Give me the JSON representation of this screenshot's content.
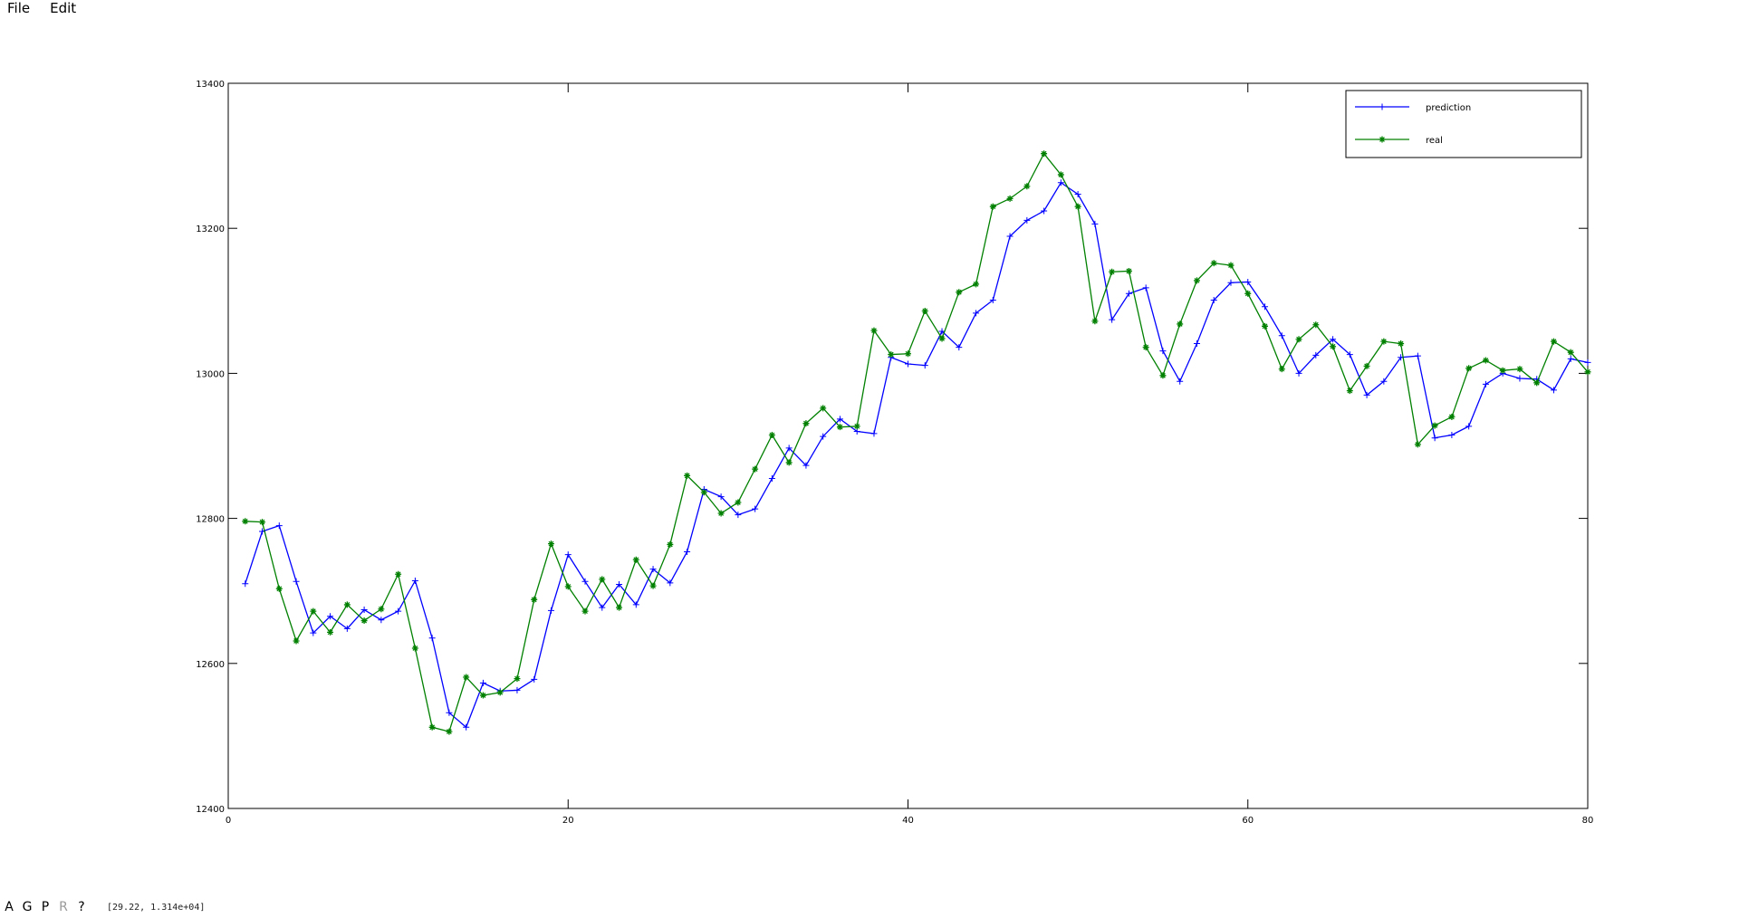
{
  "menu": {
    "file": "File",
    "edit": "Edit"
  },
  "toolbar": {
    "a": "A",
    "g": "G",
    "p": "P",
    "r": "R",
    "help": "?"
  },
  "status": {
    "coords": "[29.22, 1.314e+04]"
  },
  "chart_data": {
    "type": "line",
    "title": "",
    "xlabel": "",
    "ylabel": "",
    "xlim": [
      0,
      80
    ],
    "ylim": [
      12400,
      13400
    ],
    "xticks": [
      0,
      20,
      40,
      60,
      80
    ],
    "yticks": [
      12400,
      12600,
      12800,
      13000,
      13200,
      13400
    ],
    "grid": false,
    "legend": "top-right",
    "series": [
      {
        "name": "prediction",
        "color": "#0000ff",
        "marker": "plus",
        "x": [
          1,
          2,
          3,
          4,
          5,
          6,
          7,
          8,
          9,
          10,
          11,
          12,
          13,
          14,
          15,
          16,
          17,
          18,
          19,
          20,
          21,
          22,
          23,
          24,
          25,
          26,
          27,
          28,
          29,
          30,
          31,
          32,
          33,
          34,
          35,
          36,
          37,
          38,
          39,
          40,
          41,
          42,
          43,
          44,
          45,
          46,
          47,
          48,
          49,
          50,
          51,
          52,
          53,
          54,
          55,
          56,
          57,
          58,
          59,
          60,
          61,
          62,
          63,
          64,
          65,
          66,
          67,
          68,
          69,
          70,
          71,
          72,
          73,
          74,
          75,
          76,
          77,
          78,
          79,
          80
        ],
        "values": [
          12710,
          12782,
          12790,
          12713,
          12642,
          12665,
          12648,
          12674,
          12660,
          12672,
          12714,
          12635,
          12532,
          12512,
          12573,
          12562,
          12563,
          12578,
          12673,
          12750,
          12713,
          12677,
          12709,
          12681,
          12730,
          12711,
          12754,
          12840,
          12830,
          12805,
          12813,
          12855,
          12897,
          12873,
          12913,
          12937,
          12920,
          12917,
          13022,
          13013,
          13011,
          13058,
          13036,
          13083,
          13101,
          13189,
          13211,
          13224,
          13263,
          13247,
          13206,
          13074,
          13110,
          13118,
          13031,
          12989,
          13041,
          13101,
          13125,
          13126,
          13092,
          13052,
          13000,
          13025,
          13047,
          13026,
          12970,
          12989,
          13022,
          13024,
          12911,
          12915,
          12927,
          12985,
          13000,
          12993,
          12992,
          12977,
          13020,
          13015
        ]
      },
      {
        "name": "real",
        "color": "#008000",
        "marker": "star",
        "x": [
          1,
          2,
          3,
          4,
          5,
          6,
          7,
          8,
          9,
          10,
          11,
          12,
          13,
          14,
          15,
          16,
          17,
          18,
          19,
          20,
          21,
          22,
          23,
          24,
          25,
          26,
          27,
          28,
          29,
          30,
          31,
          32,
          33,
          34,
          35,
          36,
          37,
          38,
          39,
          40,
          41,
          42,
          43,
          44,
          45,
          46,
          47,
          48,
          49,
          50,
          51,
          52,
          53,
          54,
          55,
          56,
          57,
          58,
          59,
          60,
          61,
          62,
          63,
          64,
          65,
          66,
          67,
          68,
          69,
          70,
          71,
          72,
          73,
          74,
          75,
          76,
          77,
          78,
          79,
          80
        ],
        "values": [
          12796,
          12795,
          12703,
          12631,
          12672,
          12643,
          12681,
          12659,
          12675,
          12723,
          12621,
          12512,
          12506,
          12581,
          12556,
          12560,
          12579,
          12688,
          12765,
          12706,
          12672,
          12716,
          12677,
          12743,
          12707,
          12764,
          12859,
          12836,
          12807,
          12822,
          12868,
          12915,
          12877,
          12931,
          12952,
          12926,
          12927,
          13059,
          13026,
          13027,
          13086,
          13048,
          13112,
          13123,
          13230,
          13241,
          13258,
          13303,
          13274,
          13230,
          13072,
          13140,
          13141,
          13036,
          12997,
          13068,
          13128,
          13152,
          13149,
          13110,
          13065,
          13006,
          13047,
          13067,
          13037,
          12976,
          13010,
          13044,
          13041,
          12902,
          12928,
          12940,
          13007,
          13018,
          13004,
          13006,
          12987,
          13044,
          13029,
          13002
        ]
      }
    ]
  }
}
